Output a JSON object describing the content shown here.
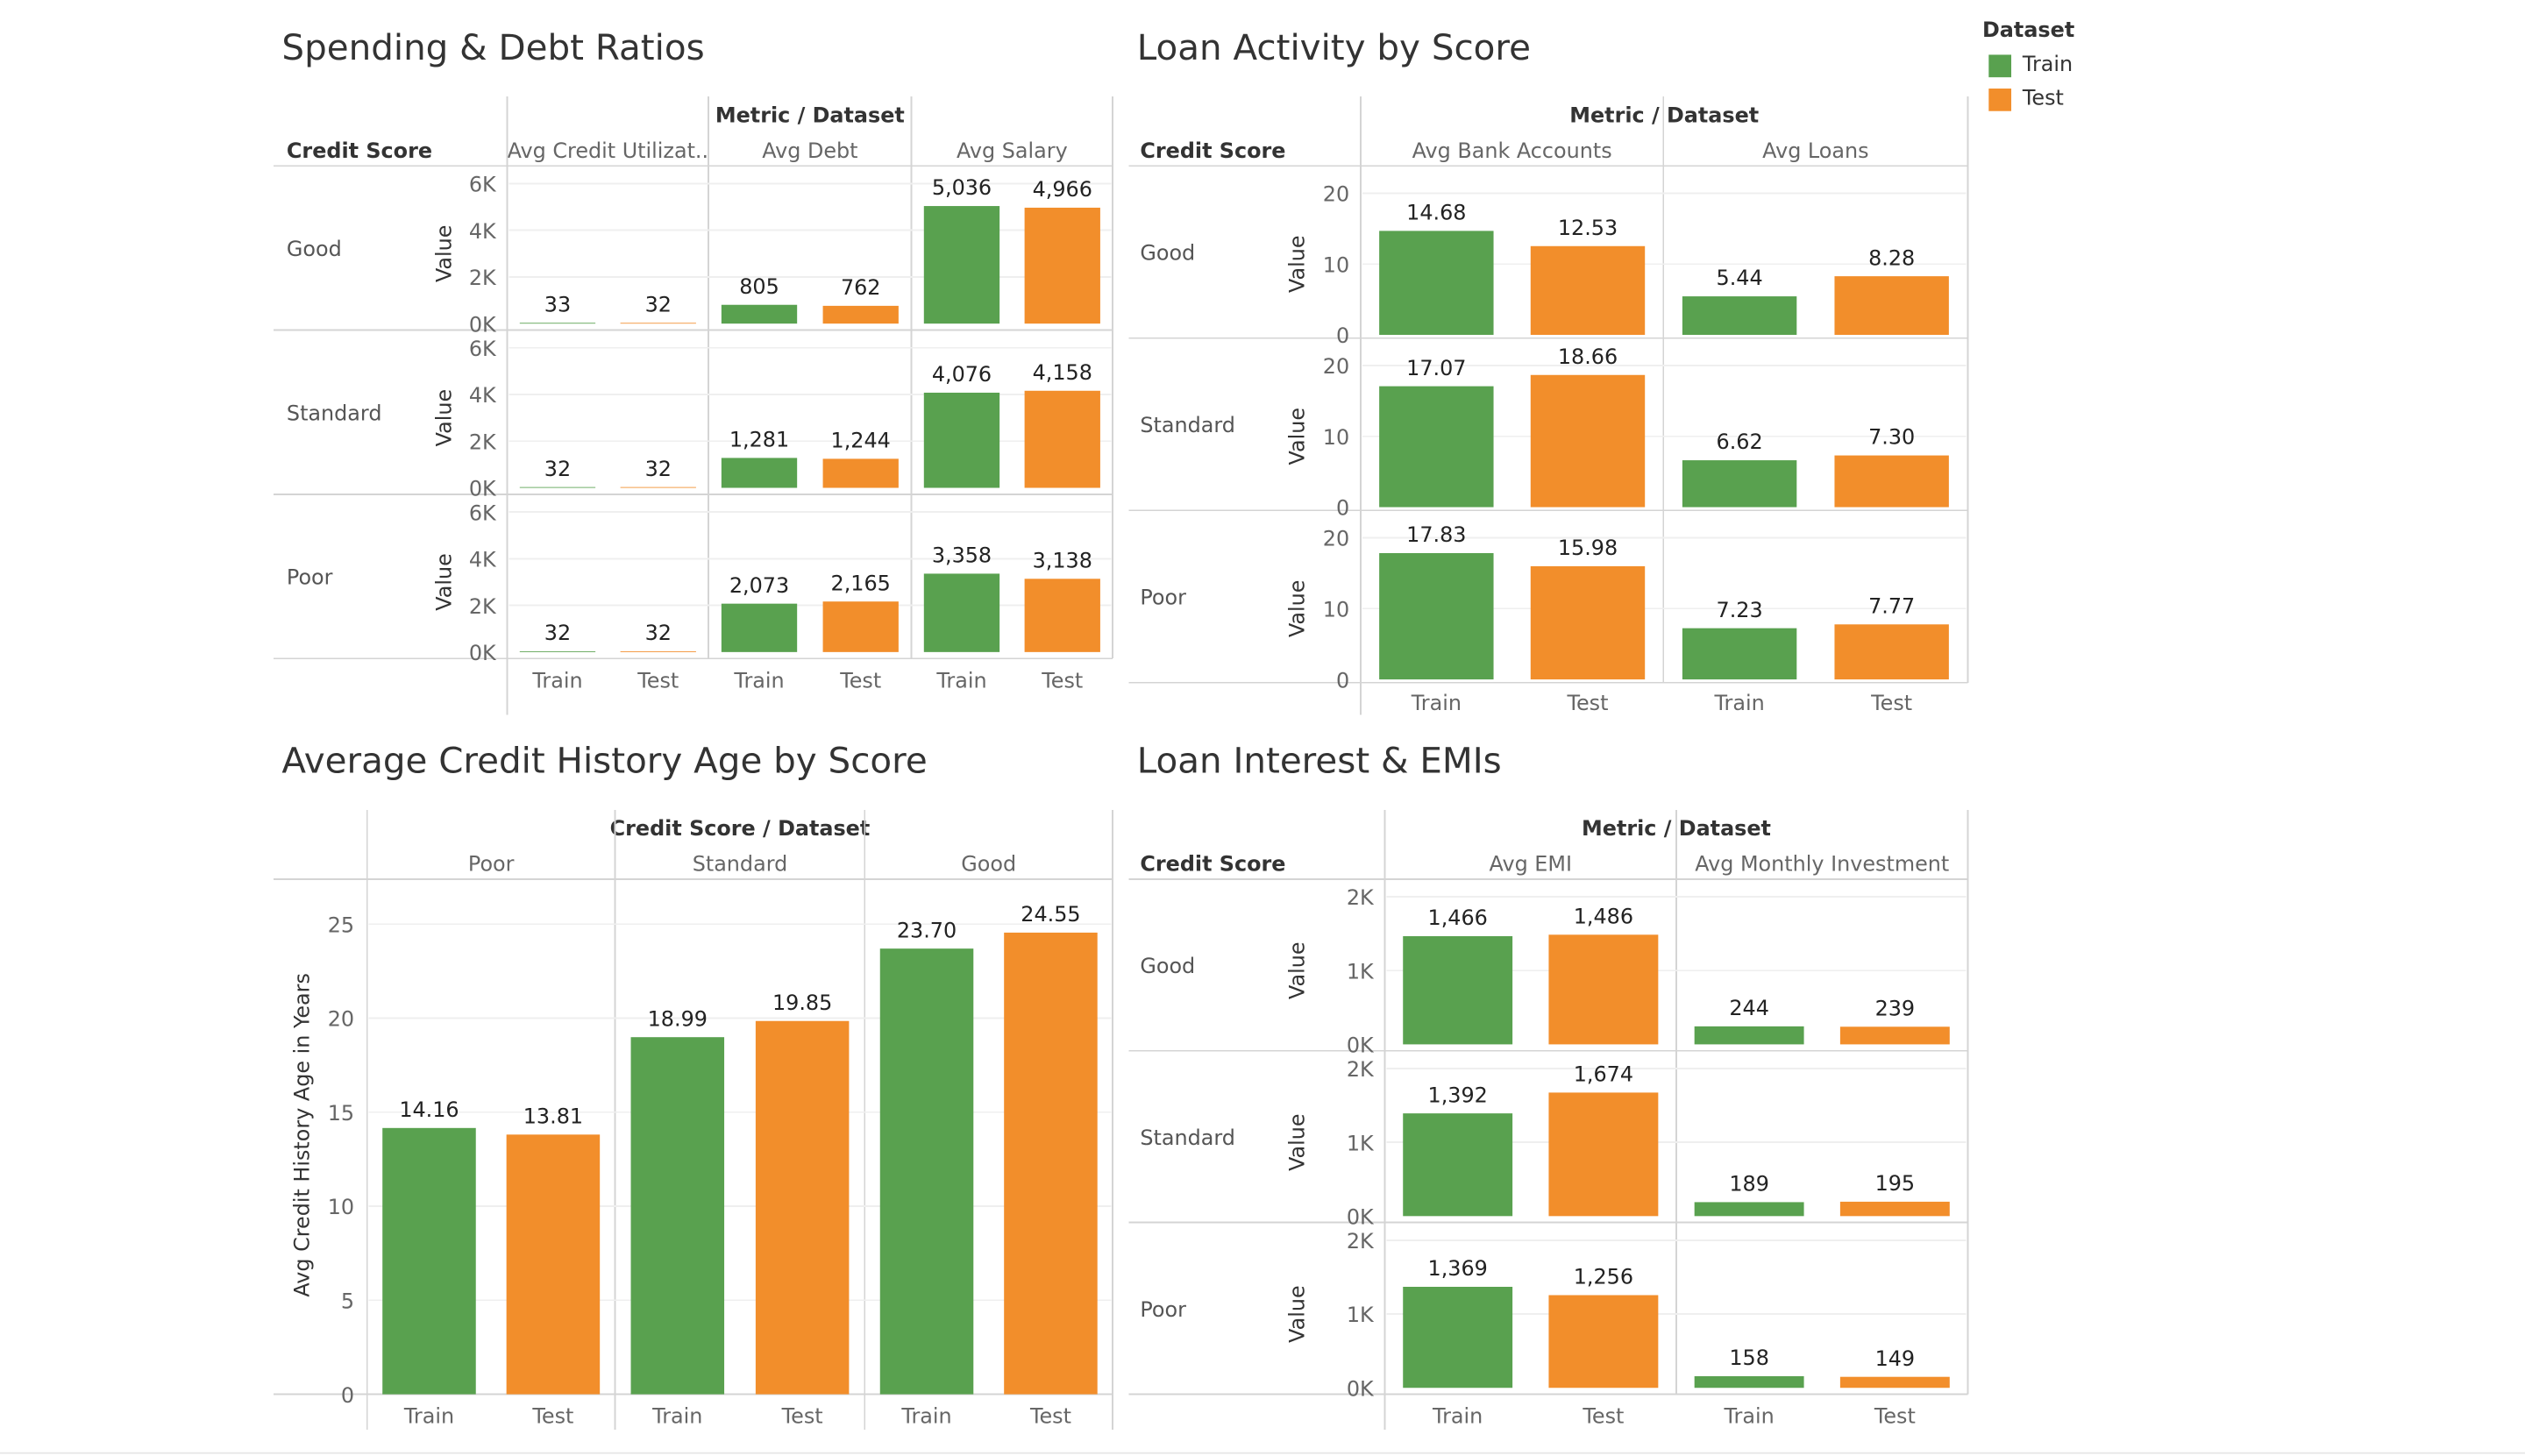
{
  "dashboard": {
    "titles": {
      "spending": "Spending & Debt Ratios",
      "loan_activity": "Loan Activity by Score",
      "history": "Average Credit History Age by Score",
      "interest": "Loan Interest & EMIs"
    }
  },
  "legend": {
    "title": "Dataset",
    "items": [
      {
        "label": "Train",
        "color": "#59a14f"
      },
      {
        "label": "Test",
        "color": "#f28e2b"
      }
    ]
  },
  "chart_data": [
    {
      "type": "bar",
      "title": "Spending & Debt Ratios",
      "column_header": "Metric / Dataset",
      "row_header": "Credit Score",
      "ylabel": "Value",
      "yticks": [
        "6K",
        "4K",
        "2K",
        "0K"
      ],
      "ylim": [
        0,
        6000
      ],
      "metrics": [
        "Avg Credit Utilizat..",
        "Avg Debt",
        "Avg Salary"
      ],
      "datasets": [
        "Train",
        "Test"
      ],
      "rows": [
        {
          "score": "Good",
          "values": [
            [
              33,
              32
            ],
            [
              805,
              762
            ],
            [
              5036,
              4966
            ]
          ],
          "labels": [
            [
              "33",
              "32"
            ],
            [
              "805",
              "762"
            ],
            [
              "5,036",
              "4,966"
            ]
          ]
        },
        {
          "score": "Standard",
          "values": [
            [
              32,
              32
            ],
            [
              1281,
              1244
            ],
            [
              4076,
              4158
            ]
          ],
          "labels": [
            [
              "32",
              "32"
            ],
            [
              "1,281",
              "1,244"
            ],
            [
              "4,076",
              "4,158"
            ]
          ]
        },
        {
          "score": "Poor",
          "values": [
            [
              32,
              32
            ],
            [
              2073,
              2165
            ],
            [
              3358,
              3138
            ]
          ],
          "labels": [
            [
              "32",
              "32"
            ],
            [
              "2,073",
              "2,165"
            ],
            [
              "3,358",
              "3,138"
            ]
          ]
        }
      ]
    },
    {
      "type": "bar",
      "title": "Loan Activity by Score",
      "column_header": "Metric / Dataset",
      "row_header": "Credit Score",
      "ylabel": "Value",
      "yticks": [
        "20",
        "10",
        "0"
      ],
      "ylim": [
        0,
        20
      ],
      "metrics": [
        "Avg Bank Accounts",
        "Avg Loans"
      ],
      "datasets": [
        "Train",
        "Test"
      ],
      "rows": [
        {
          "score": "Good",
          "values": [
            [
              14.68,
              12.53
            ],
            [
              5.44,
              8.28
            ]
          ],
          "labels": [
            [
              "14.68",
              "12.53"
            ],
            [
              "5.44",
              "8.28"
            ]
          ]
        },
        {
          "score": "Standard",
          "values": [
            [
              17.07,
              18.66
            ],
            [
              6.62,
              7.3
            ]
          ],
          "labels": [
            [
              "17.07",
              "18.66"
            ],
            [
              "6.62",
              "7.30"
            ]
          ]
        },
        {
          "score": "Poor",
          "values": [
            [
              17.83,
              15.98
            ],
            [
              7.23,
              7.77
            ]
          ],
          "labels": [
            [
              "17.83",
              "15.98"
            ],
            [
              "7.23",
              "7.77"
            ]
          ]
        }
      ]
    },
    {
      "type": "bar",
      "title": "Average Credit History Age by Score",
      "column_header": "Credit Score / Dataset",
      "ylabel": "Avg Credit History Age in Years",
      "yticks": [
        "25",
        "20",
        "15",
        "10",
        "5",
        "0"
      ],
      "ylim": [
        0,
        25
      ],
      "groups": [
        "Poor",
        "Standard",
        "Good"
      ],
      "datasets": [
        "Train",
        "Test"
      ],
      "values": [
        [
          14.16,
          13.81
        ],
        [
          18.99,
          19.85
        ],
        [
          23.7,
          24.55
        ]
      ],
      "labels": [
        [
          "14.16",
          "13.81"
        ],
        [
          "18.99",
          "19.85"
        ],
        [
          "23.70",
          "24.55"
        ]
      ]
    },
    {
      "type": "bar",
      "title": "Loan Interest & EMIs",
      "column_header": "Metric / Dataset",
      "row_header": "Credit Score",
      "ylabel": "Value",
      "yticks": [
        "2K",
        "1K",
        "0K"
      ],
      "ylim": [
        0,
        2000
      ],
      "metrics": [
        "Avg EMI",
        "Avg Monthly Investment"
      ],
      "datasets": [
        "Train",
        "Test"
      ],
      "rows": [
        {
          "score": "Good",
          "values": [
            [
              1466,
              1486
            ],
            [
              244,
              239
            ]
          ],
          "labels": [
            [
              "1,466",
              "1,486"
            ],
            [
              "244",
              "239"
            ]
          ]
        },
        {
          "score": "Standard",
          "values": [
            [
              1392,
              1674
            ],
            [
              189,
              195
            ]
          ],
          "labels": [
            [
              "1,392",
              "1,674"
            ],
            [
              "189",
              "195"
            ]
          ]
        },
        {
          "score": "Poor",
          "values": [
            [
              1369,
              1256
            ],
            [
              158,
              149
            ]
          ],
          "labels": [
            [
              "1,369",
              "1,256"
            ],
            [
              "158",
              "149"
            ]
          ]
        }
      ]
    }
  ]
}
